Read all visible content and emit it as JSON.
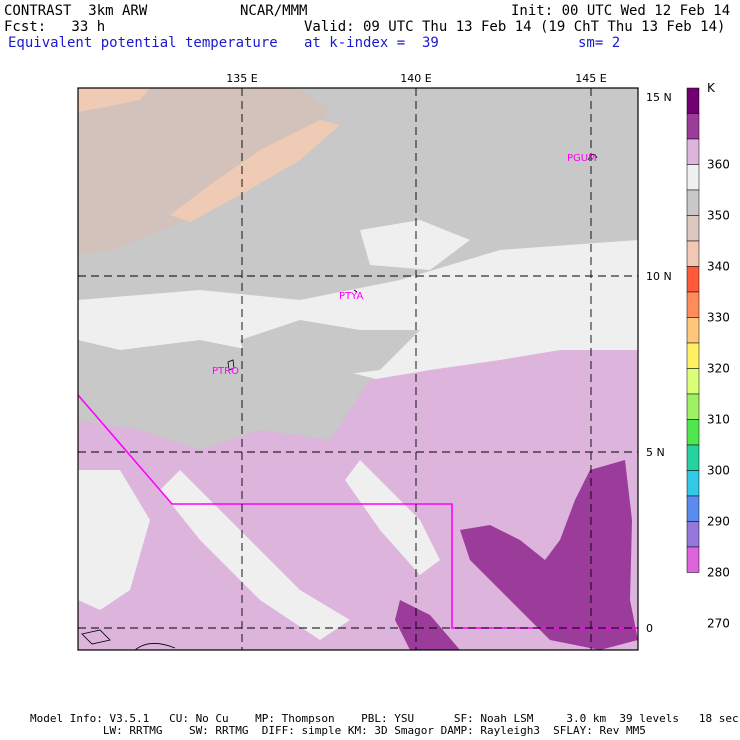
{
  "header": {
    "model": "CONTRAST  3km ARW",
    "org": "NCAR/MMM",
    "init": "Init: 00 UTC Wed 12 Feb 14",
    "fcst": "Fcst:   33 h",
    "valid": "Valid: 09 UTC Thu 13 Feb 14 (19 ChT Thu 13 Feb 14)",
    "field": "Equivalent potential temperature",
    "level": "at k-index =  39",
    "smooth": "sm= 2"
  },
  "map": {
    "lon_labels": [
      "135 E",
      "140 E",
      "145 E"
    ],
    "lat_labels": [
      "15 N",
      "10 N",
      "5 N",
      "0"
    ],
    "stations": [
      "PGUM",
      "PTYA",
      "PTRO"
    ],
    "colors": {
      "frame": "#000000",
      "boundary": "#ff00ff",
      "station": "#ff00ff",
      "background": "#c8c8c8"
    }
  },
  "colorbar": {
    "unit": "K",
    "tick_labels": [
      "360",
      "350",
      "340",
      "330",
      "320",
      "310",
      "300",
      "290",
      "280",
      "270"
    ],
    "colors": [
      "#730073",
      "#9b3c9b",
      "#dcb4dc",
      "#f0f0f0",
      "#c8c8c8",
      "#dcc8c0",
      "#f0c8b4",
      "#ff5a3c",
      "#ff8c5a",
      "#ffc878",
      "#fff064",
      "#dcff78",
      "#a0f064",
      "#50e650",
      "#28d2a0",
      "#32c8e6",
      "#5a8cf0",
      "#9678dc",
      "#dc64dc"
    ]
  },
  "footer": {
    "line1": "Model Info: V3.5.1   CU: No Cu    MP: Thompson    PBL: YSU      SF: Noah LSM     3.0 km  39 levels   18 sec",
    "line2": "           LW: RRTMG    SW: RRTMG  DIFF: simple KM: 3D Smagor DAMP: Rayleigh3  SFLAY: Rev MM5"
  }
}
